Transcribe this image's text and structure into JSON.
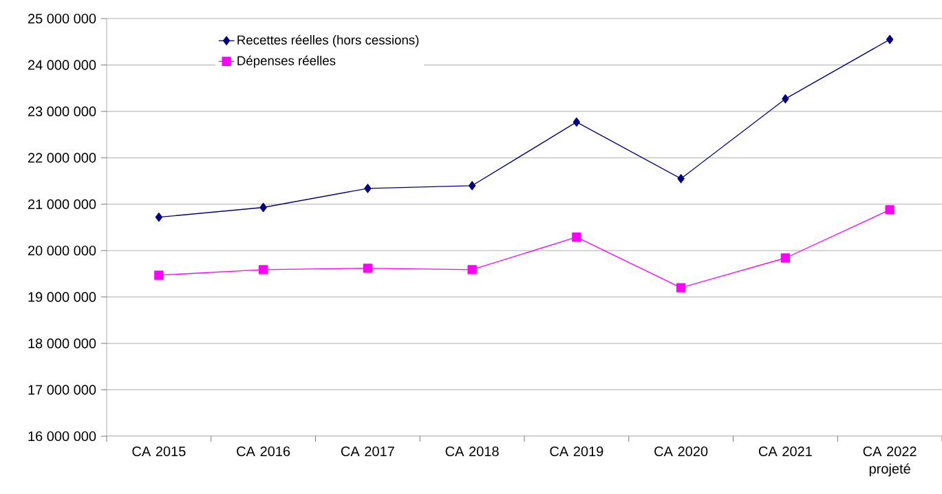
{
  "chart_data": {
    "type": "line",
    "categories": [
      "CA 2015",
      "CA 2016",
      "CA 2017",
      "CA 2018",
      "CA 2019",
      "CA 2020",
      "CA 2021",
      "CA 2022 projeté"
    ],
    "series": [
      {
        "name": "Recettes réelles (hors cessions)",
        "color": "#000080",
        "marker": "diamond",
        "values": [
          20720000,
          20930000,
          21340000,
          21400000,
          22770000,
          21550000,
          23270000,
          24550000
        ]
      },
      {
        "name": "Dépenses réelles",
        "color": "#ff00ff",
        "marker": "square",
        "values": [
          19470000,
          19590000,
          19620000,
          19590000,
          20290000,
          19200000,
          19840000,
          20880000
        ]
      }
    ],
    "ylim": [
      16000000,
      25000000
    ],
    "yticks": [
      {
        "value": 16000000,
        "label": "16 000 000"
      },
      {
        "value": 17000000,
        "label": "17 000 000"
      },
      {
        "value": 18000000,
        "label": "18 000 000"
      },
      {
        "value": 19000000,
        "label": "19 000 000"
      },
      {
        "value": 20000000,
        "label": "20 000 000"
      },
      {
        "value": 21000000,
        "label": "21 000 000"
      },
      {
        "value": 22000000,
        "label": "22 000 000"
      },
      {
        "value": 23000000,
        "label": "23 000 000"
      },
      {
        "value": 24000000,
        "label": "24 000 000"
      },
      {
        "value": 25000000,
        "label": "25 000 000"
      }
    ],
    "grid": "y",
    "legend": "top left",
    "line_style": "solid"
  }
}
